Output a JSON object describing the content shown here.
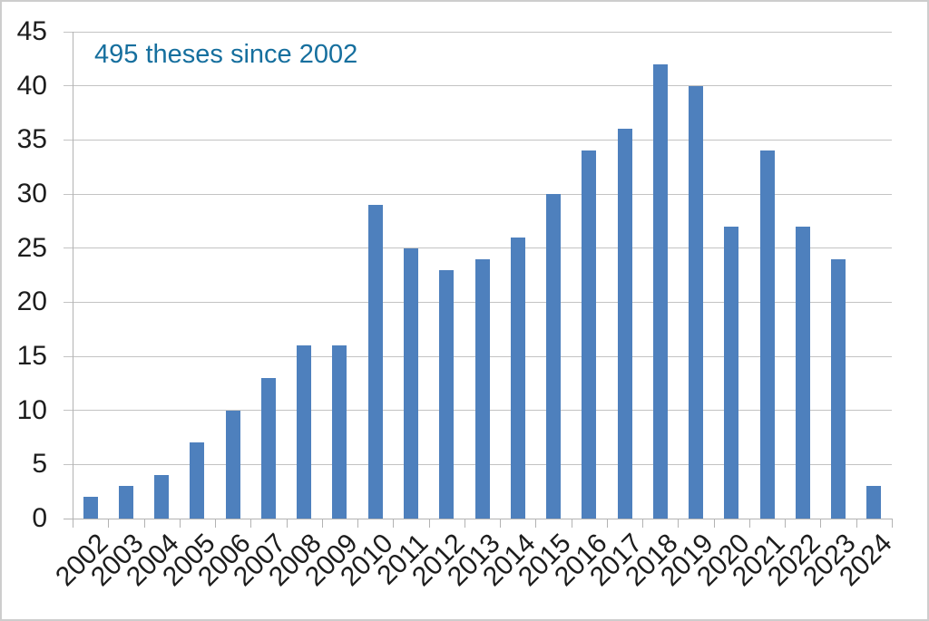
{
  "frame": {
    "background": "#ffffff",
    "border_color": "#cdcdcd"
  },
  "chart_data": {
    "type": "bar",
    "title": "495 theses since 2002",
    "categories": [
      "2002",
      "2003",
      "2004",
      "2005",
      "2006",
      "2007",
      "2008",
      "2009",
      "2010",
      "2011",
      "2012",
      "2013",
      "2014",
      "2015",
      "2016",
      "2017",
      "2018",
      "2019",
      "2020",
      "2021",
      "2022",
      "2023",
      "2024"
    ],
    "values": [
      2,
      3,
      4,
      7,
      10,
      13,
      16,
      16,
      29,
      25,
      23,
      24,
      26,
      30,
      34,
      36,
      42,
      40,
      27,
      34,
      27,
      24,
      3
    ],
    "total": 495,
    "xlabel": "",
    "ylabel": "",
    "ylim": [
      0,
      45
    ],
    "yticks": [
      0,
      5,
      10,
      15,
      20,
      25,
      30,
      35,
      40,
      45
    ],
    "grid": true,
    "legend": false,
    "x_label_rotation": -45,
    "colors": {
      "bar": "#4e80bd",
      "gridline": "#c3c3c3",
      "axis": "#b3b3b3",
      "tick_label": "#1d1d1d",
      "title": "#166f9e"
    }
  }
}
